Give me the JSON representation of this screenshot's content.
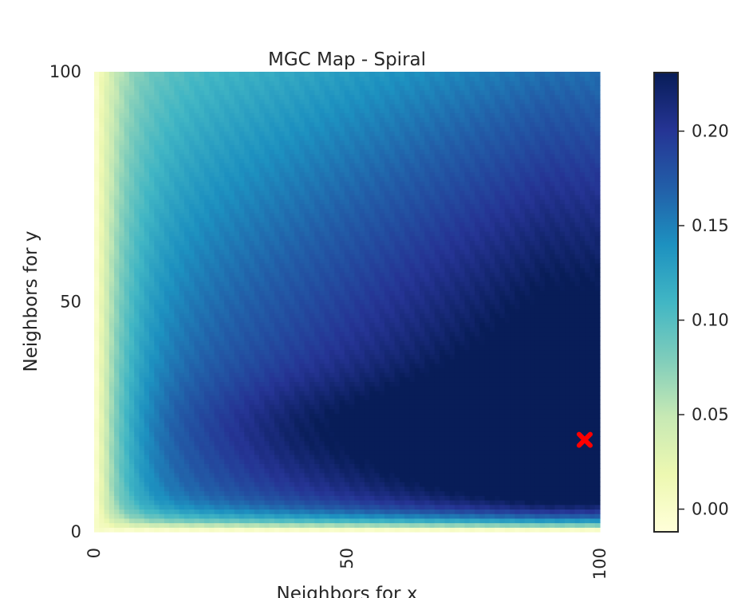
{
  "chart_data": {
    "type": "heatmap",
    "title": "MGC Map - Spiral",
    "xlabel": "Neighbors for x",
    "ylabel": "Neighbors for y",
    "x_range": [
      0,
      100
    ],
    "y_range": [
      0,
      100
    ],
    "x_ticks": [
      0,
      50,
      100
    ],
    "y_ticks": [
      0,
      50,
      100
    ],
    "colormap": "YlGnBu",
    "colorbar": {
      "range": [
        -0.012,
        0.231
      ],
      "ticks": [
        0.0,
        0.05,
        0.1,
        0.15,
        0.2
      ],
      "tick_labels": [
        "0.00",
        "0.05",
        "0.10",
        "0.15",
        "0.20"
      ]
    },
    "optimal_scale": {
      "x": 97,
      "y": 20,
      "marker": "X",
      "color": "#ff0000"
    },
    "grid": false
  }
}
